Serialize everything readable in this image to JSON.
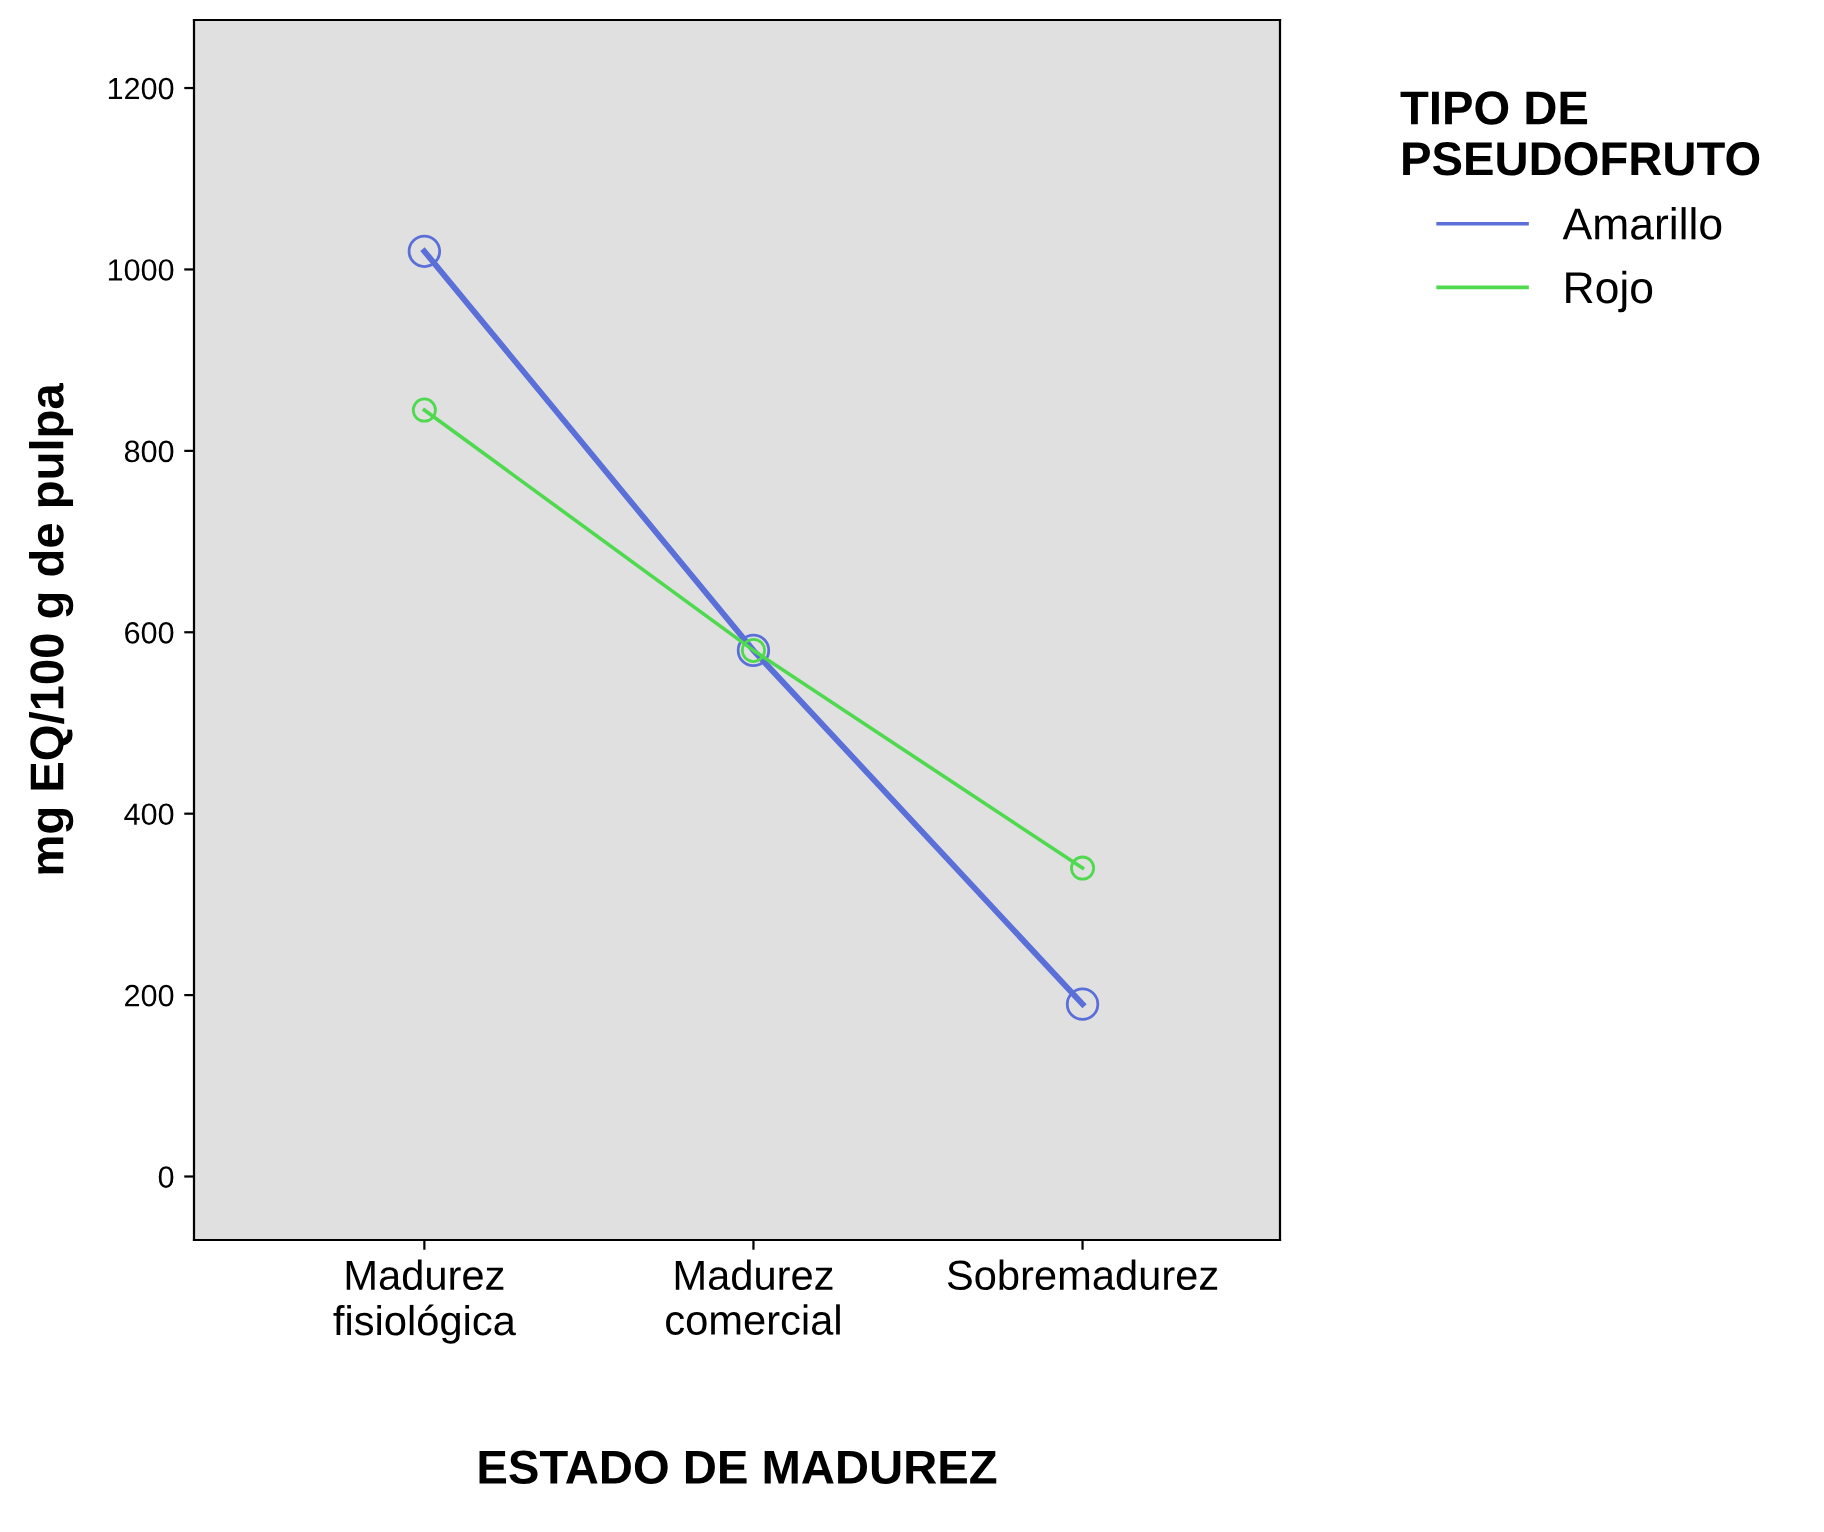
{
  "chart_data": {
    "type": "line",
    "xlabel": "ESTADO DE MADUREZ",
    "ylabel": "mg EQ/100 g de pulpa",
    "legend_title": "TIPO DE\nPSEUDOFRUTO",
    "categories": [
      "Madurez\nfisiológica",
      "Madurez\ncomercial",
      "Sobremadurez"
    ],
    "series": [
      {
        "name": "Amarillo",
        "color": "#5a6fd8",
        "values": [
          1020,
          580,
          190
        ]
      },
      {
        "name": "Rojo",
        "color": "#4fd94f",
        "values": [
          845,
          580,
          340
        ]
      }
    ],
    "ylim": [
      -70,
      1275
    ],
    "yticks": [
      0,
      200,
      400,
      600,
      800,
      1000,
      1200
    ],
    "marker": "circle",
    "line_style": "solid",
    "grid": false,
    "legend": "top right"
  }
}
